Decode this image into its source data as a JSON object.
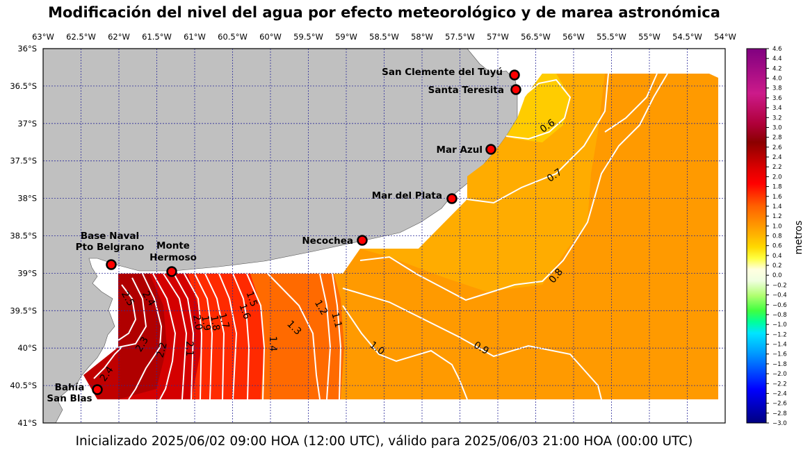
{
  "title": "Modificación del nivel del agua por efecto meteorológico y de marea astronómica",
  "footer": "Inicializado 2025/06/02 09:00 HOA (12:00 UTC), válido para 2025/06/03 21:00 HOA (00:00 UTC)",
  "lon_ticks": [
    "63°W",
    "62.5°W",
    "62°W",
    "61.5°W",
    "61°W",
    "60.5°W",
    "60°W",
    "59.5°W",
    "59°W",
    "58.5°W",
    "58°W",
    "57.5°W",
    "57°W",
    "56.5°W",
    "56°W",
    "55.5°W",
    "55°W",
    "54.5°W",
    "54°W"
  ],
  "lat_ticks": [
    "36°S",
    "36.5°S",
    "37°S",
    "37.5°S",
    "38°S",
    "38.5°S",
    "39°S",
    "39.5°S",
    "40°S",
    "40.5°S",
    "41°S"
  ],
  "colorbar": {
    "label": "metros",
    "tick_labels": [
      "4.6",
      "4.4",
      "4.2",
      "4.0",
      "3.8",
      "3.6",
      "3.4",
      "3.2",
      "3.0",
      "2.8",
      "2.6",
      "2.4",
      "2.2",
      "2.0",
      "1.8",
      "1.6",
      "1.4",
      "1.2",
      "1.0",
      "0.8",
      "0.6",
      "0.4",
      "0.2",
      "0.0",
      "−0.2",
      "−0.4",
      "−0.6",
      "−0.8",
      "−1.0",
      "−1.2",
      "−1.4",
      "−1.6",
      "−1.8",
      "−2.0",
      "−2.2",
      "−2.4",
      "−2.6",
      "−2.8",
      "−3.0"
    ]
  },
  "stations": [
    {
      "name": "San Clemente del Tuyú"
    },
    {
      "name": "Santa Teresita"
    },
    {
      "name": "Mar Azul"
    },
    {
      "name": "Mar del Plata"
    },
    {
      "name": "Necochea"
    },
    {
      "name_line1": "Base Naval",
      "name_line2": "Pto Belgrano"
    },
    {
      "name_line1": "Monte",
      "name_line2": "Hermoso"
    },
    {
      "name_line1": "Bahía",
      "name_line2": "San Blas"
    }
  ],
  "contour_labels": [
    "0.6",
    "0.7",
    "0.8",
    "0.9",
    "1.0",
    "1.1",
    "1.2",
    "1.3",
    "1.4",
    "1.5",
    "1.6",
    "1.7",
    "1.8",
    "1.9",
    "2.0",
    "2.1",
    "2.2",
    "2.3",
    "2.4",
    "2.5",
    "2.4"
  ],
  "colors": {
    "land": "#c0c0c0",
    "grid": "#2a2a9a",
    "station_fill": "#ff0000"
  }
}
